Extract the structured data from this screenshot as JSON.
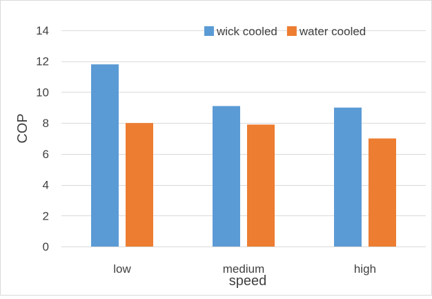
{
  "chart_data": {
    "type": "bar",
    "categories": [
      "low",
      "medium",
      "high"
    ],
    "series": [
      {
        "name": "wick cooled",
        "values": [
          11.8,
          9.1,
          9.0
        ],
        "color": "#5B9BD5"
      },
      {
        "name": "water cooled",
        "values": [
          8.0,
          7.9,
          7.0
        ],
        "color": "#ED7D31"
      }
    ],
    "title": "",
    "xlabel": "speed",
    "ylabel": "COP",
    "ylim": [
      0,
      14
    ],
    "yticks": [
      0,
      2,
      4,
      6,
      8,
      10,
      12,
      14
    ],
    "grid": true,
    "legend_position": "top-right"
  }
}
